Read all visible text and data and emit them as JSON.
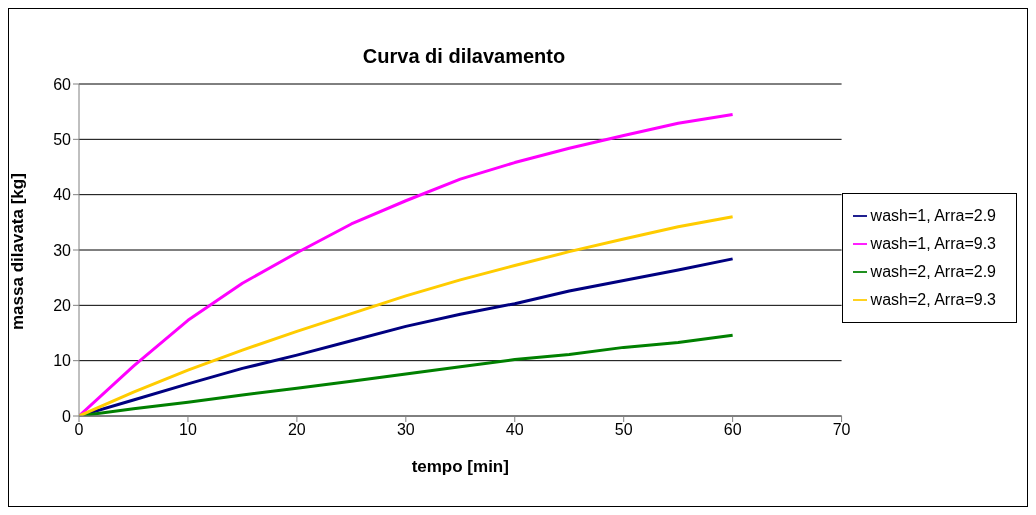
{
  "chart_data": {
    "type": "line",
    "title": "Curva di dilavamento",
    "xlabel": "tempo [min]",
    "ylabel": "massa dilavata [kg]",
    "x": [
      0,
      5,
      10,
      15,
      20,
      25,
      30,
      35,
      40,
      45,
      50,
      55,
      60
    ],
    "series": [
      {
        "name": "wash=1, Arra=2.9",
        "color": "#000080",
        "values": [
          0,
          2.9,
          5.8,
          8.6,
          11,
          13.6,
          16.2,
          18.4,
          20.3,
          22.6,
          24.5,
          26.4,
          28.4
        ]
      },
      {
        "name": "wash=1, Arra=9.3",
        "color": "#ff00ff",
        "values": [
          0,
          9,
          17.3,
          24,
          29.5,
          34.7,
          38.9,
          42.8,
          45.8,
          48.4,
          50.7,
          52.9,
          54.5
        ]
      },
      {
        "name": "wash=2, Arra=2.9",
        "color": "#008000",
        "values": [
          0,
          1.3,
          2.5,
          3.8,
          5,
          6.3,
          7.6,
          8.9,
          10.2,
          11.1,
          12.4,
          13.3,
          14.6
        ]
      },
      {
        "name": "wash=2, Arra=9.3",
        "color": "#ffcc00",
        "values": [
          0,
          4.3,
          8.3,
          11.9,
          15.3,
          18.5,
          21.7,
          24.6,
          27.2,
          29.7,
          32,
          34.2,
          36
        ]
      }
    ],
    "xlim": [
      0,
      70
    ],
    "xticks": [
      0,
      10,
      20,
      30,
      40,
      50,
      60,
      70
    ],
    "ylim": [
      0,
      60
    ],
    "yticks": [
      0,
      10,
      20,
      30,
      40,
      50,
      60
    ],
    "grid": "y",
    "legend": "right",
    "marker": "none",
    "line_style": "solid"
  }
}
